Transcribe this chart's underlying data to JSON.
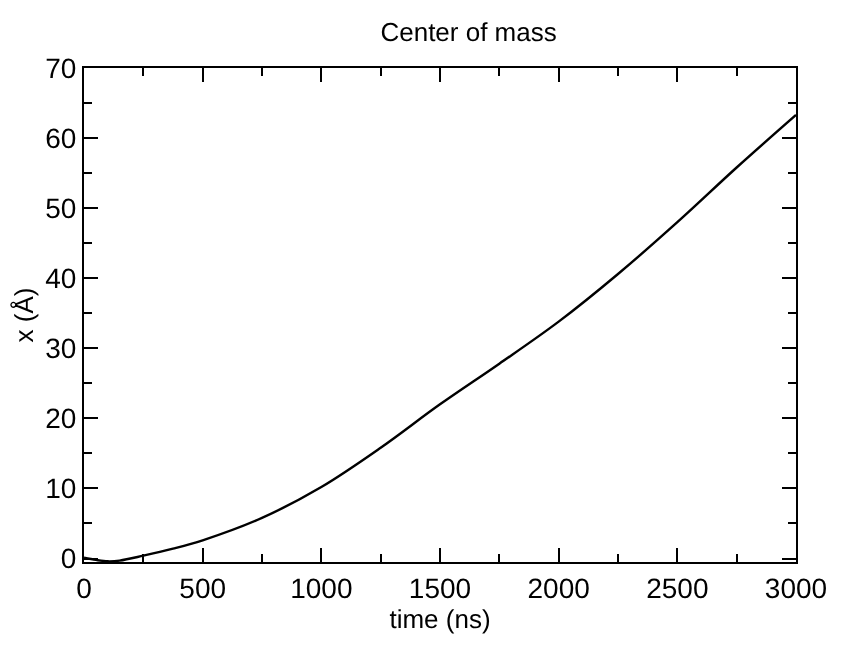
{
  "chart_data": {
    "type": "line",
    "title": "Center of mass",
    "xlabel": "time (ns)",
    "ylabel": "x (Å)",
    "x": [
      0,
      50,
      100,
      150,
      250,
      375,
      500,
      750,
      1000,
      1250,
      1500,
      1750,
      2000,
      2250,
      2500,
      2750,
      3000
    ],
    "series": [
      {
        "color": "#000000",
        "values": [
          0.1,
          -0.2,
          -0.4,
          -0.3,
          0.4,
          1.4,
          2.6,
          5.8,
          10.2,
          15.8,
          22.0,
          27.8,
          33.8,
          40.6,
          48.0,
          55.8,
          63.3
        ]
      }
    ],
    "xlim": [
      0,
      3000
    ],
    "ylim": [
      -0.5,
      70
    ],
    "xticks": [
      0,
      {
        "value": 250,
        "label": null
      },
      500,
      {
        "value": 750,
        "label": null
      },
      1000,
      {
        "value": 1250,
        "label": null
      },
      1500,
      {
        "value": 1750,
        "label": null
      },
      2000,
      {
        "value": 2250,
        "label": null
      },
      2500,
      {
        "value": 2750,
        "label": null
      },
      3000
    ],
    "yticks": [
      0,
      {
        "value": 5,
        "label": null
      },
      10,
      {
        "value": 15,
        "label": null
      },
      20,
      {
        "value": 25,
        "label": null
      },
      30,
      {
        "value": 35,
        "label": null
      },
      40,
      {
        "value": 45,
        "label": null
      },
      50,
      {
        "value": 55,
        "label": null
      },
      60,
      {
        "value": 65,
        "label": null
      },
      70
    ],
    "marker": "none",
    "line_style": "solid"
  }
}
